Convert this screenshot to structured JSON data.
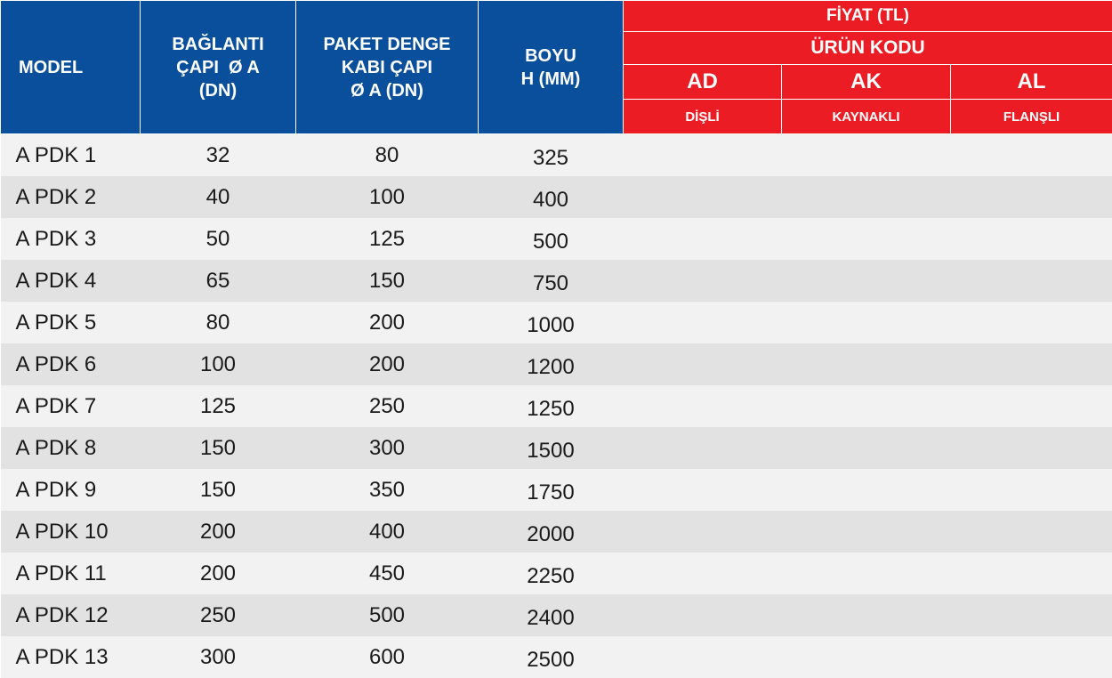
{
  "header": {
    "model": "MODEL",
    "baglanti": [
      "BAĞLANTI",
      "ÇAPI  Ø A",
      "(DN)"
    ],
    "paket": [
      "PAKET DENGE",
      "KABI ÇAPI",
      "Ø A (DN)"
    ],
    "boyu": [
      "BOYU",
      "H (MM)"
    ],
    "fiyat": "FİYAT (TL)",
    "urun_kodu": "ÜRÜN KODU",
    "codes": [
      "AD",
      "AK",
      "AL"
    ],
    "types": [
      "DİŞLİ",
      "KAYNAKLI",
      "FLANŞLI"
    ]
  },
  "colors": {
    "header_blue": "#0A4F9C",
    "header_red": "#EC1C24",
    "row_light": "#F2F2F2",
    "row_dark": "#E2E2E2"
  },
  "rows": [
    {
      "model": "A PDK 1",
      "baglanti": "32",
      "paket": "80",
      "boyu": "325"
    },
    {
      "model": "A PDK 2",
      "baglanti": "40",
      "paket": "100",
      "boyu": "400"
    },
    {
      "model": "A PDK 3",
      "baglanti": "50",
      "paket": "125",
      "boyu": "500"
    },
    {
      "model": "A PDK 4",
      "baglanti": "65",
      "paket": "150",
      "boyu": "750"
    },
    {
      "model": "A PDK 5",
      "baglanti": "80",
      "paket": "200",
      "boyu": "1000"
    },
    {
      "model": "A PDK 6",
      "baglanti": "100",
      "paket": "200",
      "boyu": "1200"
    },
    {
      "model": "A PDK 7",
      "baglanti": "125",
      "paket": "250",
      "boyu": "1250"
    },
    {
      "model": "A PDK 8",
      "baglanti": "150",
      "paket": "300",
      "boyu": "1500"
    },
    {
      "model": "A PDK 9",
      "baglanti": "150",
      "paket": "350",
      "boyu": "1750"
    },
    {
      "model": "A PDK 10",
      "baglanti": "200",
      "paket": "400",
      "boyu": "2000"
    },
    {
      "model": "A PDK 11",
      "baglanti": "200",
      "paket": "450",
      "boyu": "2250"
    },
    {
      "model": "A PDK 12",
      "baglanti": "250",
      "paket": "500",
      "boyu": "2400"
    },
    {
      "model": "A PDK 13",
      "baglanti": "300",
      "paket": "600",
      "boyu": "2500"
    }
  ]
}
